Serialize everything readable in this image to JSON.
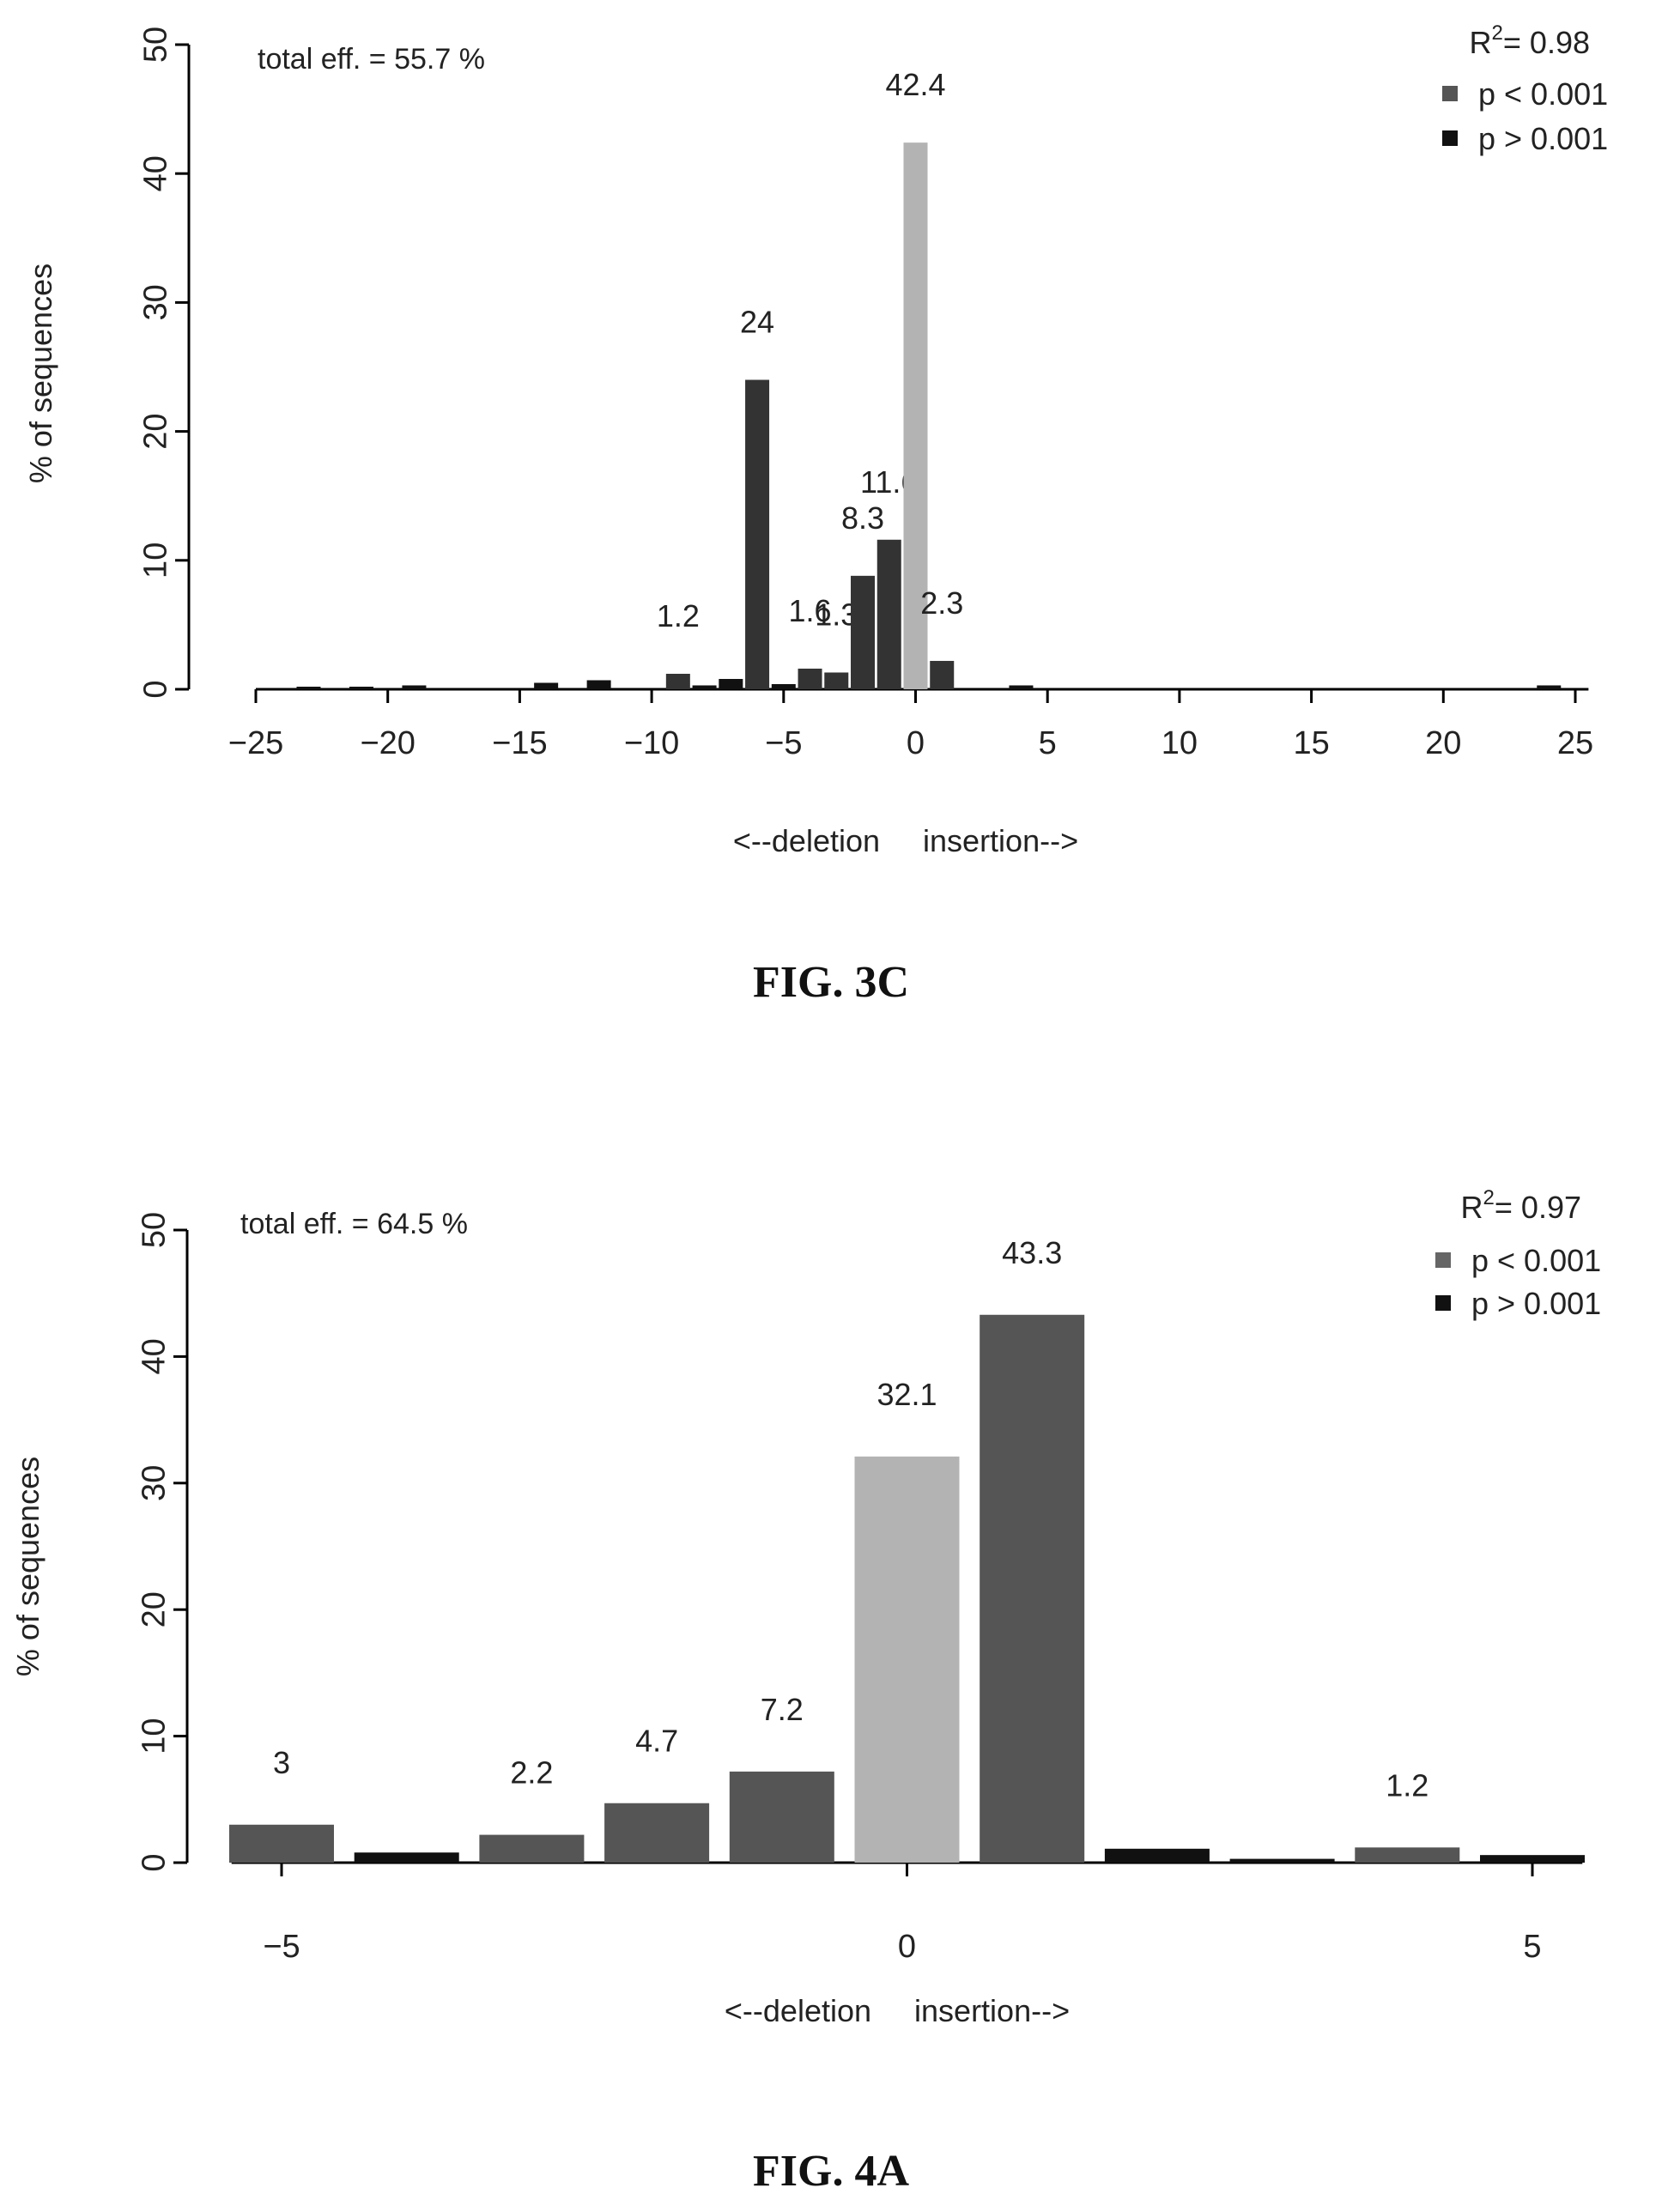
{
  "figures": [
    {
      "caption": "FIG. 3C",
      "chart_data": {
        "type": "bar",
        "ylabel": "% of sequences",
        "xlabel": "<--deletion     insertion-->",
        "annotation": "total eff. = 55.7 %",
        "r_squared_label": "R",
        "r_squared_exp": "2",
        "r_squared_value": "= 0.98",
        "xlim": [
          -25,
          25
        ],
        "ylim": [
          0,
          50
        ],
        "xticks": [
          -25,
          -20,
          -15,
          -10,
          -5,
          0,
          5,
          10,
          15,
          20,
          25
        ],
        "yticks": [
          0,
          10,
          20,
          30,
          40,
          50
        ],
        "legend_position": "top-right",
        "legend": [
          {
            "label": "p < 0.001",
            "color": "#555555"
          },
          {
            "label": "p > 0.001",
            "color": "#111111"
          }
        ],
        "bars": [
          {
            "x": -23,
            "value": 0.2,
            "color": "#111111",
            "label": ""
          },
          {
            "x": -21,
            "value": 0.2,
            "color": "#111111",
            "label": ""
          },
          {
            "x": -19,
            "value": 0.3,
            "color": "#111111",
            "label": ""
          },
          {
            "x": -14,
            "value": 0.5,
            "color": "#111111",
            "label": ""
          },
          {
            "x": -12,
            "value": 0.7,
            "color": "#111111",
            "label": ""
          },
          {
            "x": -9,
            "value": 1.2,
            "color": "#333333",
            "label": "1.2"
          },
          {
            "x": -8,
            "value": 0.3,
            "color": "#111111",
            "label": ""
          },
          {
            "x": -7,
            "value": 0.8,
            "color": "#111111",
            "label": ""
          },
          {
            "x": -6,
            "value": 24,
            "color": "#333333",
            "label": "24"
          },
          {
            "x": -5,
            "value": 0.4,
            "color": "#111111",
            "label": ""
          },
          {
            "x": -4,
            "value": 1.6,
            "color": "#333333",
            "label": "1.6"
          },
          {
            "x": -3,
            "value": 1.3,
            "color": "#333333",
            "label": "1.3"
          },
          {
            "x": -2,
            "value": 8.8,
            "color": "#333333",
            "label": "8.3"
          },
          {
            "x": -1,
            "value": 11.6,
            "color": "#333333",
            "label": "11.6"
          },
          {
            "x": 0,
            "value": 42.4,
            "color": "#b3b3b3",
            "label": "42.4"
          },
          {
            "x": 1,
            "value": 2.2,
            "color": "#333333",
            "label": "2.3"
          },
          {
            "x": 4,
            "value": 0.3,
            "color": "#111111",
            "label": ""
          },
          {
            "x": 24,
            "value": 0.3,
            "color": "#111111",
            "label": ""
          }
        ]
      }
    },
    {
      "caption": "FIG. 4A",
      "chart_data": {
        "type": "bar",
        "ylabel": "% of sequences",
        "xlabel": "<--deletion     insertion-->",
        "annotation": "total eff. = 64.5 %",
        "r_squared_label": "R",
        "r_squared_exp": "2",
        "r_squared_value": "= 0.97",
        "xlim": [
          -5,
          5
        ],
        "ylim": [
          0,
          50
        ],
        "xticks": [
          -5,
          0,
          5
        ],
        "yticks": [
          0,
          10,
          20,
          30,
          40,
          50
        ],
        "legend_position": "top-right",
        "legend": [
          {
            "label": "p < 0.001",
            "color": "#666666"
          },
          {
            "label": "p > 0.001",
            "color": "#111111"
          }
        ],
        "bars": [
          {
            "x": -5,
            "value": 3,
            "color": "#555555",
            "label": "3"
          },
          {
            "x": -4,
            "value": 0.8,
            "color": "#111111",
            "label": ""
          },
          {
            "x": -3,
            "value": 2.2,
            "color": "#555555",
            "label": "2.2"
          },
          {
            "x": -2,
            "value": 4.7,
            "color": "#555555",
            "label": "4.7"
          },
          {
            "x": -1,
            "value": 7.2,
            "color": "#555555",
            "label": "7.2"
          },
          {
            "x": 0,
            "value": 32.1,
            "color": "#b3b3b3",
            "label": "32.1"
          },
          {
            "x": 1,
            "value": 43.3,
            "color": "#555555",
            "label": "43.3"
          },
          {
            "x": 2,
            "value": 1.1,
            "color": "#111111",
            "label": ""
          },
          {
            "x": 3,
            "value": 0.3,
            "color": "#111111",
            "label": ""
          },
          {
            "x": 4,
            "value": 1.2,
            "color": "#555555",
            "label": "1.2"
          },
          {
            "x": 5,
            "value": 0.6,
            "color": "#111111",
            "label": ""
          }
        ]
      }
    }
  ]
}
